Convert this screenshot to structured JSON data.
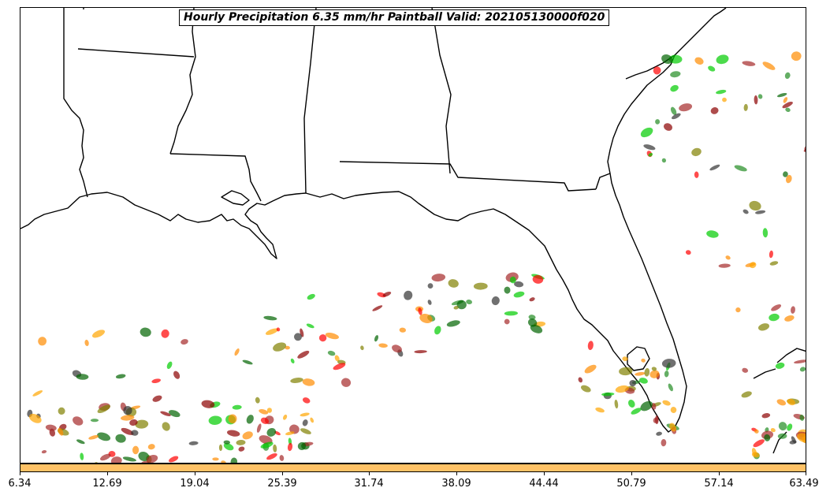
{
  "title": "Hourly Precipitation 6.35 mm/hr Paintball Valid: 202105130000f020",
  "colorbar": {
    "color": "#FFC266",
    "ticks": [
      "6.34",
      "12.69",
      "19.04",
      "25.39",
      "31.74",
      "38.09",
      "44.44",
      "50.79",
      "57.14",
      "63.49"
    ]
  },
  "member_colors": [
    "#8B0000",
    "#FF0000",
    "#FF8C00",
    "#FFA500",
    "#808000",
    "#006400",
    "#00CC00",
    "#A52A2A",
    "#333333",
    "#228B22"
  ]
}
